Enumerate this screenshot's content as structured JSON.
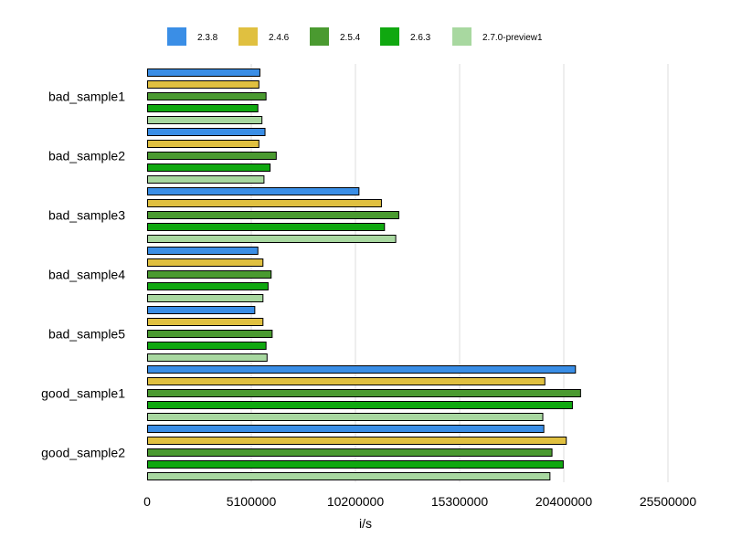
{
  "chart_data": {
    "type": "bar",
    "orientation": "horizontal",
    "title": "",
    "xlabel": "i/s",
    "ylabel": "",
    "xlim": [
      0,
      25500000
    ],
    "x_ticks": [
      0,
      5100000,
      10200000,
      15300000,
      20400000,
      25500000
    ],
    "x_tick_labels": [
      "0",
      "5100000",
      "10200000",
      "15300000",
      "20400000",
      "25500000"
    ],
    "grid": "vertical",
    "legend_position": "top",
    "categories": [
      "bad_sample1",
      "bad_sample2",
      "bad_sample3",
      "bad_sample4",
      "bad_sample5",
      "good_sample1",
      "good_sample2"
    ],
    "series": [
      {
        "name": "2.3.8",
        "color": "#3a8ee6",
        "values": [
          5500000,
          5750000,
          10350000,
          5400000,
          5250000,
          20950000,
          19400000
        ]
      },
      {
        "name": "2.4.6",
        "color": "#e0c040",
        "values": [
          5450000,
          5450000,
          11450000,
          5650000,
          5650000,
          19450000,
          20500000
        ]
      },
      {
        "name": "2.5.4",
        "color": "#4a9a30",
        "values": [
          5800000,
          6300000,
          12300000,
          6050000,
          6100000,
          21200000,
          19800000
        ]
      },
      {
        "name": "2.6.3",
        "color": "#10a810",
        "values": [
          5400000,
          6000000,
          11600000,
          5900000,
          5800000,
          20800000,
          20350000
        ]
      },
      {
        "name": "2.7.0-preview1",
        "color": "#a8d8a0",
        "values": [
          5600000,
          5700000,
          12150000,
          5650000,
          5850000,
          19350000,
          19700000
        ]
      }
    ]
  }
}
